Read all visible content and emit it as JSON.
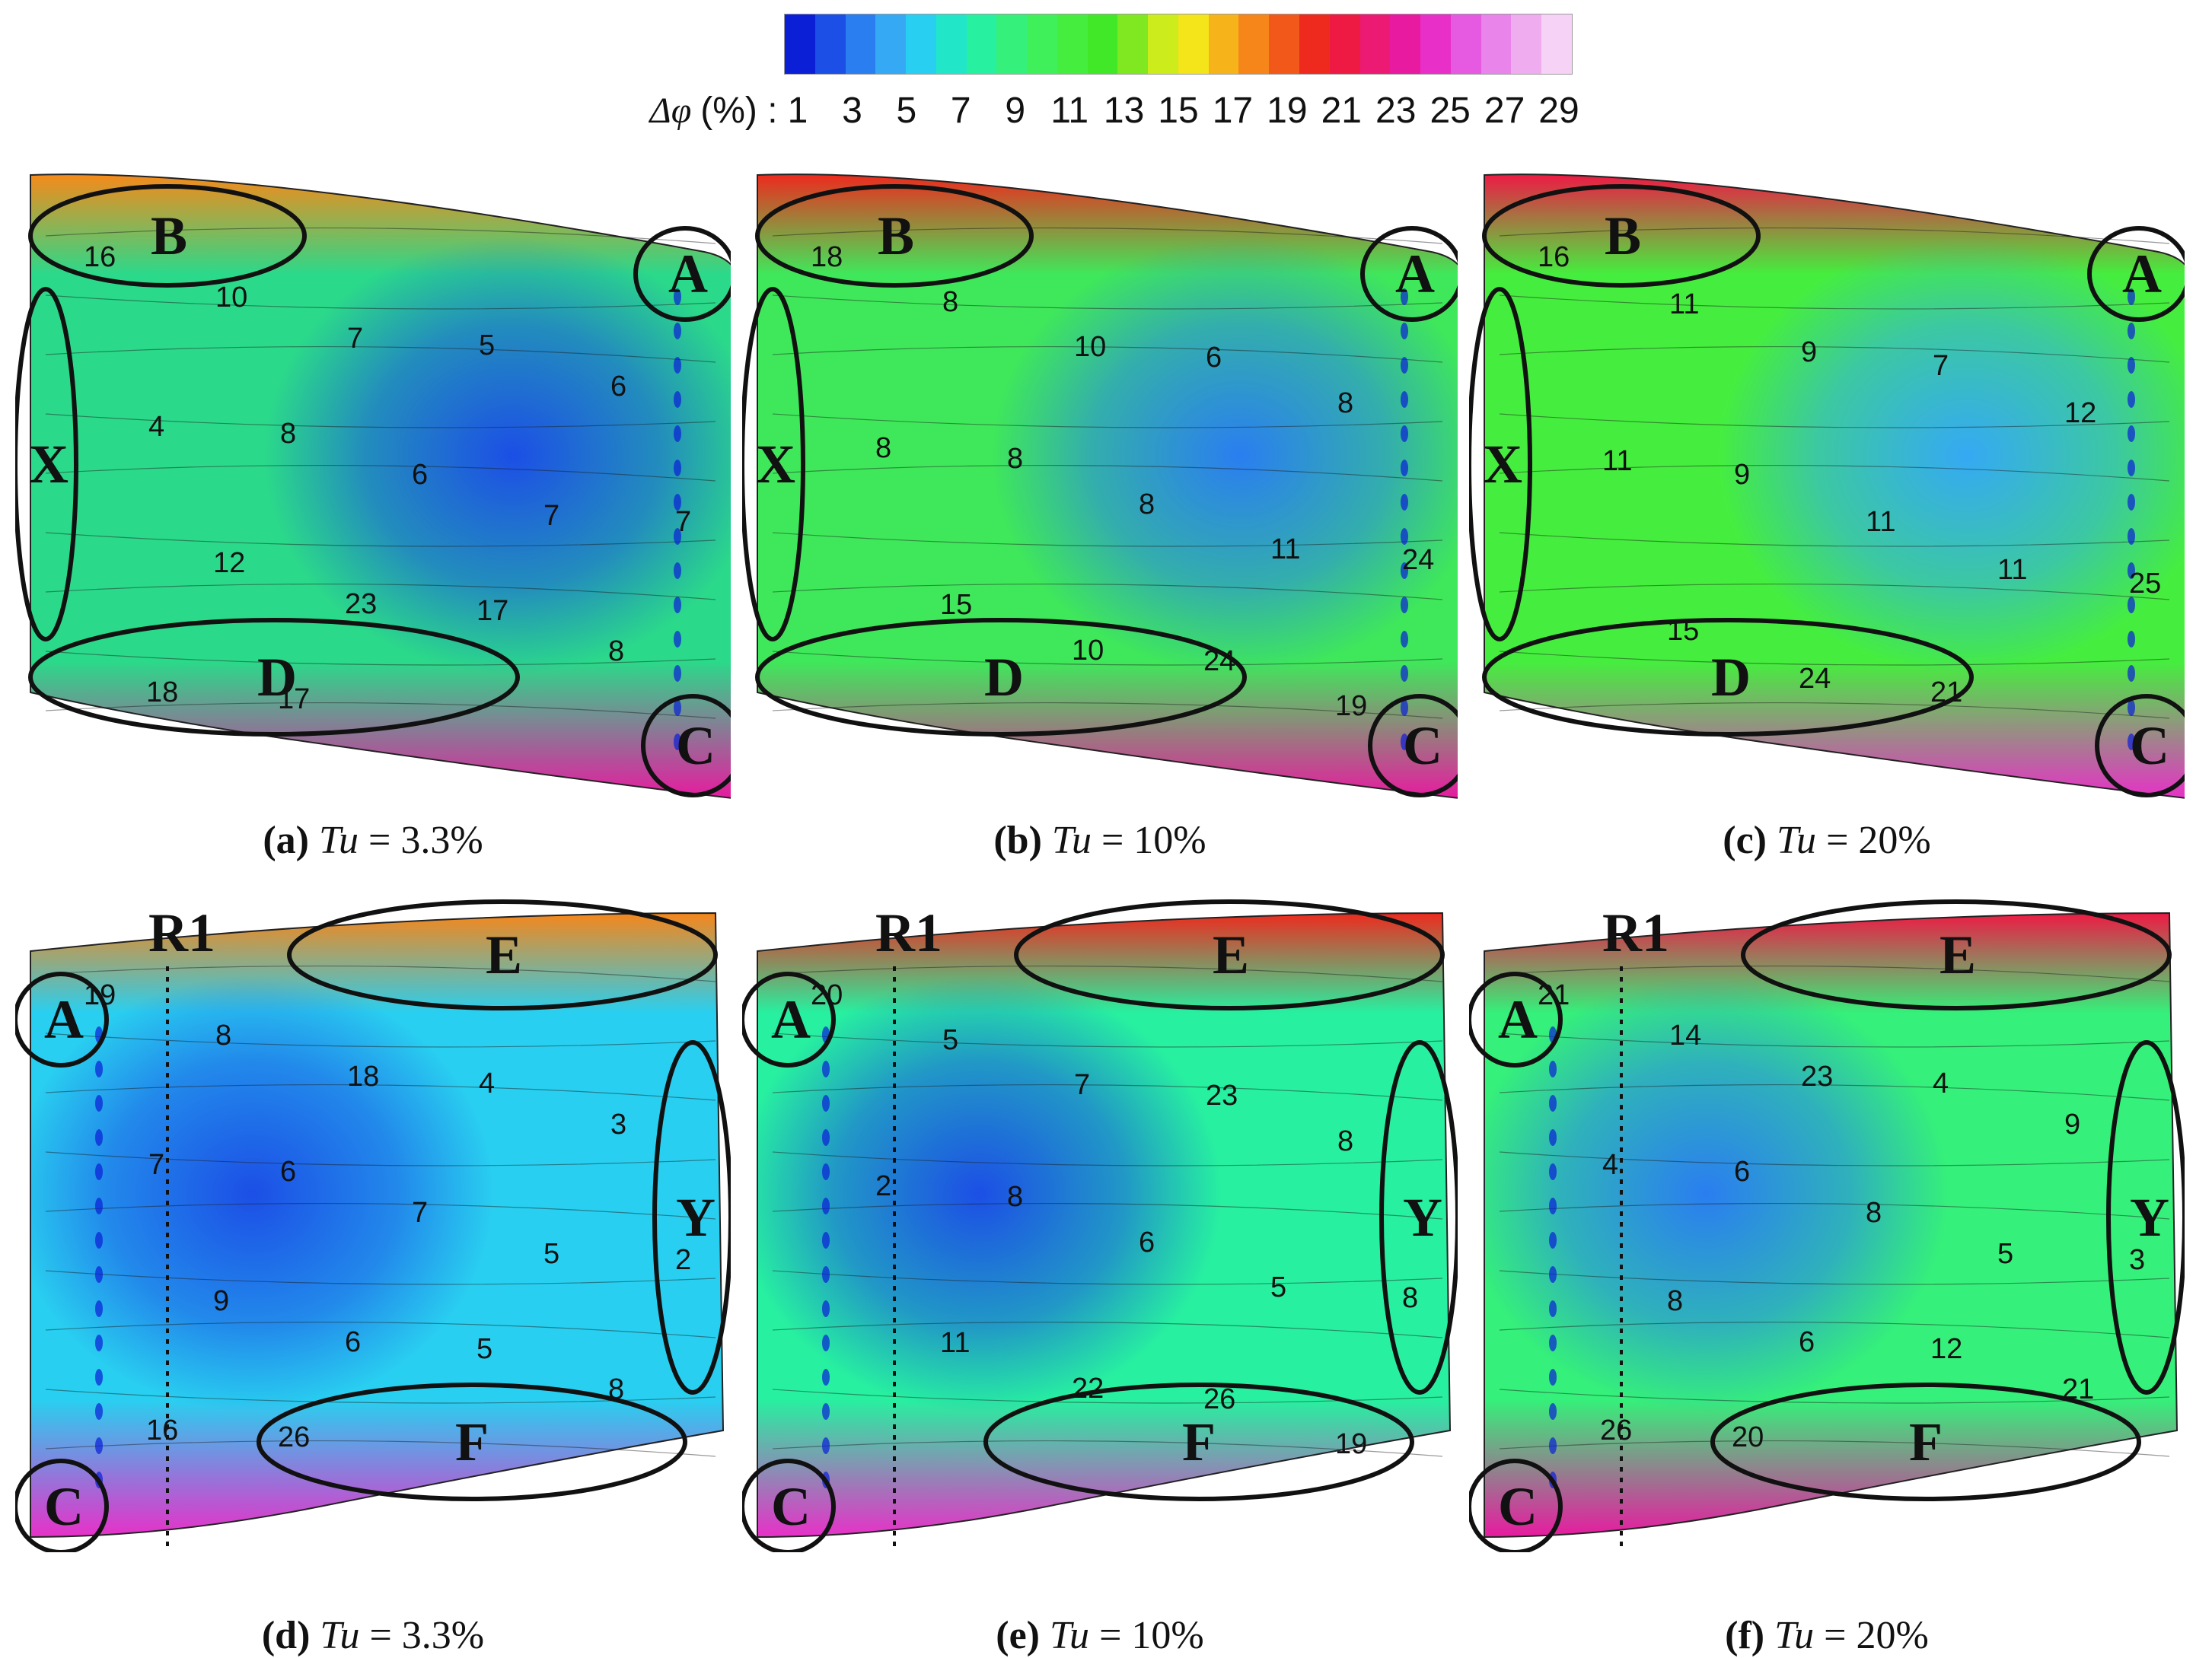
{
  "colorbar": {
    "title_symbol": "Δφ",
    "title_unit": "(%) :",
    "tick_labels": [
      "1",
      "3",
      "5",
      "7",
      "9",
      "11",
      "13",
      "15",
      "17",
      "19",
      "21",
      "23",
      "25",
      "27",
      "29"
    ],
    "colors": [
      "#0a1fd6",
      "#1c4fe6",
      "#2a7ef0",
      "#35a9f4",
      "#29cff0",
      "#22e6c8",
      "#27f0a0",
      "#35f07a",
      "#3ff05a",
      "#45ee3e",
      "#40e828",
      "#7fe820",
      "#cdec1c",
      "#f4e41a",
      "#f6b41a",
      "#f6861a",
      "#f2581a",
      "#ee2a1e",
      "#ee1a44",
      "#ec1a72",
      "#e81aa0",
      "#e830c8",
      "#e55ae0",
      "#e884ea",
      "#efadf0",
      "#f6d3f6"
    ]
  },
  "panels": [
    {
      "id": "a",
      "row": "top",
      "caption": {
        "letter": "(a)",
        "tu": "Tu",
        "value": "= 3.3%"
      },
      "regions": [
        "A",
        "B",
        "C",
        "D",
        "X"
      ],
      "contours": [
        "16",
        "10",
        "7",
        "5",
        "6",
        "4",
        "8",
        "6",
        "7",
        "7",
        "12",
        "23",
        "17",
        "8",
        "18",
        "17"
      ],
      "level": {
        "mid": "#2bd98a",
        "edge_top": "#f68a1a",
        "edge_bot": "#e81aa0",
        "core": "#1c4fe6"
      }
    },
    {
      "id": "b",
      "row": "top",
      "caption": {
        "letter": "(b)",
        "tu": "Tu",
        "value": "= 10%"
      },
      "regions": [
        "A",
        "B",
        "C",
        "D",
        "X"
      ],
      "contours": [
        "18",
        "8",
        "10",
        "6",
        "8",
        "8",
        "8",
        "8",
        "11",
        "24",
        "15",
        "10",
        "24",
        "19"
      ],
      "level": {
        "mid": "#3fe85a",
        "edge_top": "#ee2a1e",
        "edge_bot": "#e81aa0",
        "core": "#2a7ef0"
      }
    },
    {
      "id": "c",
      "row": "top",
      "caption": {
        "letter": "(c)",
        "tu": "Tu",
        "value": "= 20%"
      },
      "regions": [
        "A",
        "B",
        "C",
        "D",
        "X"
      ],
      "contours": [
        "16",
        "11",
        "9",
        "7",
        "12",
        "11",
        "9",
        "11",
        "11",
        "25",
        "15",
        "24",
        "21"
      ],
      "level": {
        "mid": "#45ee3e",
        "edge_top": "#ee1a44",
        "edge_bot": "#e830c8",
        "core": "#35a9f4"
      }
    },
    {
      "id": "d",
      "row": "bottom",
      "caption": {
        "letter": "(d)",
        "tu": "Tu",
        "value": "= 3.3%"
      },
      "regions": [
        "A",
        "C",
        "E",
        "F",
        "Y",
        "R1"
      ],
      "contours": [
        "19",
        "8",
        "18",
        "4",
        "3",
        "7",
        "6",
        "7",
        "5",
        "2",
        "9",
        "6",
        "5",
        "8",
        "16",
        "26"
      ],
      "level": {
        "mid": "#29cff0",
        "edge_top": "#f6861a",
        "edge_bot": "#e830c8",
        "core": "#1c4fe6"
      }
    },
    {
      "id": "e",
      "row": "bottom",
      "caption": {
        "letter": "(e)",
        "tu": "Tu",
        "value": "= 10%"
      },
      "regions": [
        "A",
        "C",
        "E",
        "F",
        "Y",
        "R1"
      ],
      "contours": [
        "20",
        "5",
        "7",
        "23",
        "8",
        "2",
        "8",
        "6",
        "5",
        "8",
        "11",
        "22",
        "26",
        "19"
      ],
      "level": {
        "mid": "#27f0a0",
        "edge_top": "#ee2a1e",
        "edge_bot": "#e830c8",
        "core": "#1c4fe6"
      }
    },
    {
      "id": "f",
      "row": "bottom",
      "caption": {
        "letter": "(f)",
        "tu": "Tu",
        "value": "= 20%"
      },
      "regions": [
        "A",
        "C",
        "E",
        "F",
        "Y",
        "R1"
      ],
      "contours": [
        "21",
        "14",
        "23",
        "4",
        "9",
        "4",
        "6",
        "8",
        "5",
        "3",
        "8",
        "6",
        "12",
        "21",
        "26",
        "20"
      ],
      "level": {
        "mid": "#35f07a",
        "edge_top": "#ee1a44",
        "edge_bot": "#e81aa0",
        "core": "#2a7ef0"
      }
    }
  ]
}
